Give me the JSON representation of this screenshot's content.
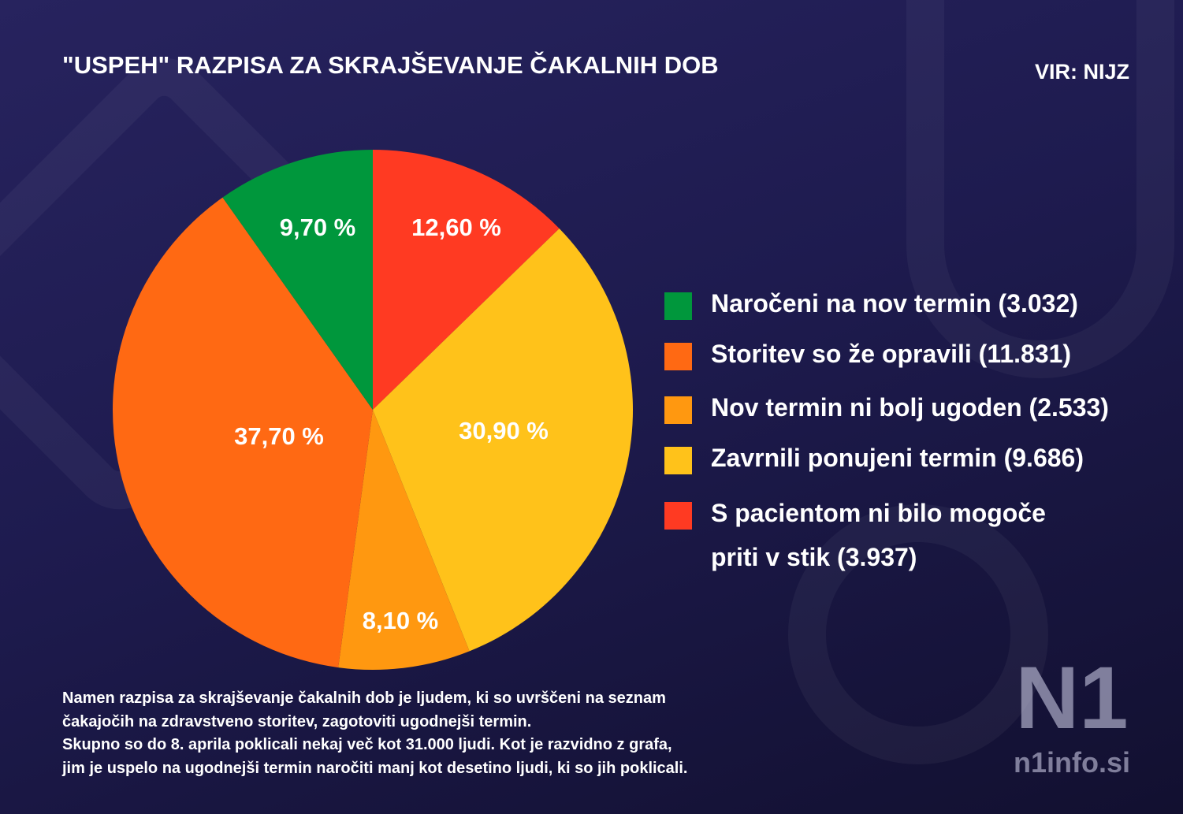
{
  "title": "\"USPEH\" RAZPISA ZA SKRAJŠEVANJE ČAKALNIH DOB",
  "source": "VIR: NIJZ",
  "chart_data": {
    "type": "pie",
    "title": "\"USPEH\" RAZPISA ZA SKRAJŠEVANJE ČAKALNIH DOB",
    "start": "top",
    "direction": "clockwise",
    "legend_position": "right",
    "slices": [
      {
        "legend": "S pacientom ni bilo mogoče priti v stik (3.937)",
        "value": 12.6,
        "label": "12,60 %",
        "color": "#ff3a22"
      },
      {
        "legend": "Zavrnili ponujeni termin (9.686)",
        "value": 30.9,
        "label": "30,90 %",
        "color": "#ffc21a"
      },
      {
        "legend": "Nov termin ni bolj ugoden (2.533)",
        "value": 8.1,
        "label": "8,10 %",
        "color": "#ff9810"
      },
      {
        "legend": "Storitev so že opravili (11.831)",
        "value": 37.7,
        "label": "37,70 %",
        "color": "#ff6913"
      },
      {
        "legend": "Naročeni na nov termin (3.032)",
        "value": 9.7,
        "label": "9,70 %",
        "color": "#00973c"
      }
    ],
    "legend": [
      {
        "line1": "Naročeni na nov termin (3.032)",
        "line2": "",
        "color": "#00973c"
      },
      {
        "line1": "Storitev so že opravili (11.831)",
        "line2": "",
        "color": "#ff6913"
      },
      {
        "line1": "Nov termin ni bolj ugoden (2.533)",
        "line2": "",
        "color": "#ff9810"
      },
      {
        "line1": "Zavrnili ponujeni termin (9.686)",
        "line2": "",
        "color": "#ffc21a"
      },
      {
        "line1": "S pacientom ni bilo mogoče",
        "line2": "priti v stik (3.937)",
        "color": "#ff3a22"
      }
    ]
  },
  "note": [
    "Namen razpisa za skrajševanje čakalnih dob je ljudem, ki so uvrščeni na seznam",
    "čakajočih na zdravstveno storitev, zagotoviti ugodnejši termin.",
    "Skupno so do 8. aprila poklicali nekaj več kot 31.000 ljudi. Kot je razvidno z grafa,",
    "jim je uspelo na ugodnejši termin naročiti manj kot desetino ljudi, ki so jih poklicali."
  ],
  "logo": {
    "mark": "N1",
    "site": "n1info.si"
  }
}
